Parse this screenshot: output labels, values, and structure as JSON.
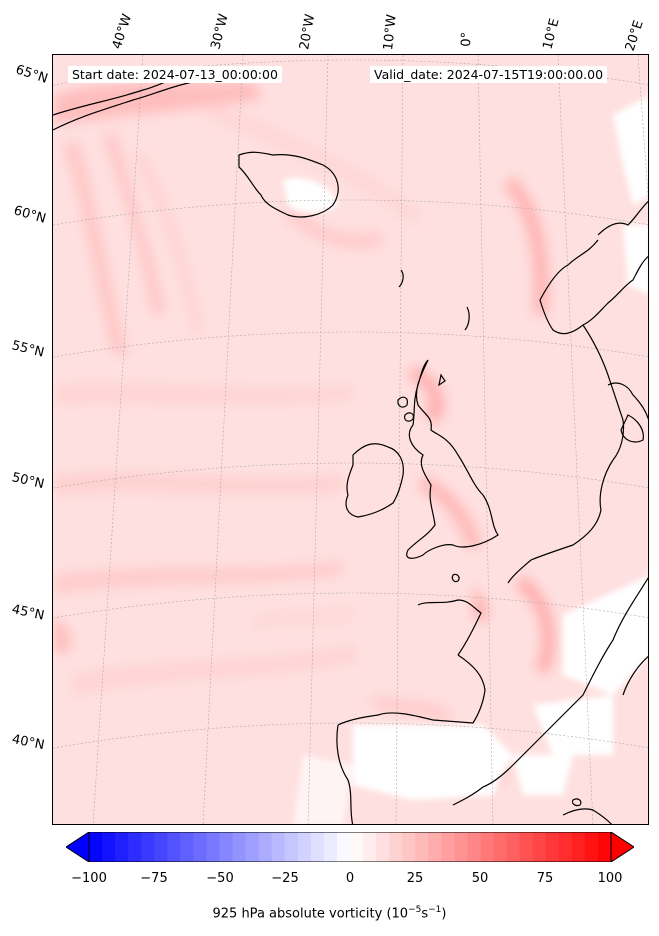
{
  "header": {
    "start_date": "Start date: 2024-07-13_00:00:00",
    "valid_date": "Valid_date: 2024-07-15T19:00:00.00"
  },
  "lon_labels": [
    "40°W",
    "30°W",
    "20°W",
    "10°W",
    "0°",
    "10°E",
    "20°E"
  ],
  "lat_labels": [
    "65°N",
    "60°N",
    "55°N",
    "50°N",
    "45°N",
    "40°N"
  ],
  "colorbar": {
    "ticks": [
      "−100",
      "−75",
      "−50",
      "−25",
      "0",
      "25",
      "50",
      "75",
      "100"
    ],
    "min": -100,
    "max": 100,
    "extend": "both",
    "label_main": "925 hPa absolute vorticity (10",
    "label_exp1": "−5",
    "label_mid": "s",
    "label_exp2": "−1",
    "label_end": ")",
    "colormap": "bwr",
    "low_color": "#0000ff",
    "mid_color": "#ffffff",
    "high_color": "#ff0000"
  },
  "map": {
    "projection": "Lambert conformal",
    "field_background_color": "#ffe3e3",
    "land_blank_color": "#ffffff",
    "coastline_color": "#000000",
    "gridlines": "dotted grey"
  }
}
